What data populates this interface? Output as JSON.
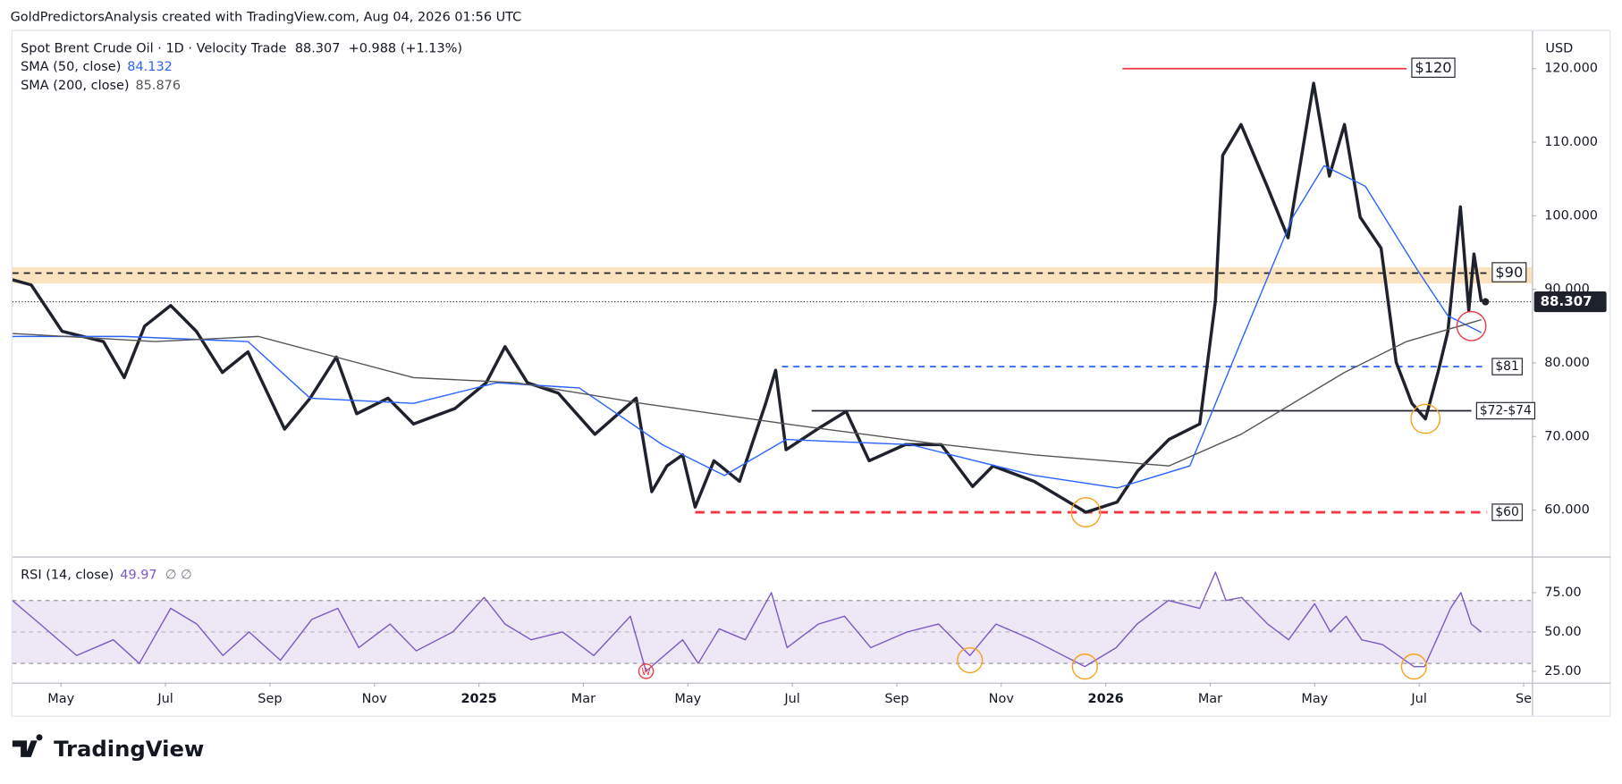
{
  "header": "GoldPredictorsAnalysis created with TradingView.com, Aug 04, 2026 01:56 UTC",
  "logo": "TradingView",
  "chart_data": [
    {
      "type": "line",
      "title": "Spot Brent Crude Oil · 1D · Velocity Trade",
      "change": "+0.988 (+1.13%)",
      "currency": "USD",
      "xlim": [
        3.07,
        32.16
      ],
      "xticks": [
        {
          "value": 4,
          "label": "May"
        },
        {
          "value": 6,
          "label": "Jul"
        },
        {
          "value": 8,
          "label": "Sep"
        },
        {
          "value": 10,
          "label": "Nov"
        },
        {
          "value": 12,
          "label": "2025"
        },
        {
          "value": 14,
          "label": "Mar"
        },
        {
          "value": 16,
          "label": "May"
        },
        {
          "value": 18,
          "label": "Jul"
        },
        {
          "value": 20,
          "label": "Sep"
        },
        {
          "value": 22,
          "label": "Nov"
        },
        {
          "value": 24,
          "label": "2026"
        },
        {
          "value": 26,
          "label": "Mar"
        },
        {
          "value": 28,
          "label": "May"
        },
        {
          "value": 30,
          "label": "Jul"
        },
        {
          "value": 32,
          "label": "Se"
        }
      ],
      "ylim": [
        53.7,
        125.1
      ],
      "yticks": [
        {
          "value": 60,
          "label": "60.000"
        },
        {
          "value": 70,
          "label": "70.000"
        },
        {
          "value": 80,
          "label": "80.000"
        },
        {
          "value": 90,
          "label": "90.000"
        },
        {
          "value": 100,
          "label": "100.000"
        },
        {
          "value": 110,
          "label": "110.000"
        },
        {
          "value": 120,
          "label": "120.000"
        }
      ],
      "band": [
        90.8,
        93
      ],
      "band_color": "#fbe3bf",
      "series": [
        {
          "color": "#1e222d",
          "x": [
            3.07,
            3.43,
            4.02,
            4.81,
            5.21,
            5.6,
            6.1,
            6.59,
            7.09,
            7.58,
            8.28,
            8.77,
            9.27,
            9.66,
            10.26,
            10.75,
            11.54,
            12.14,
            12.5,
            12.93,
            13.52,
            14.22,
            15.01,
            15.31,
            15.6,
            15.9,
            16.14,
            16.5,
            16.99,
            17.49,
            17.68,
            17.88,
            18.48,
            19.03,
            19.47,
            20.16,
            20.85,
            21.45,
            21.84,
            22.63,
            23.62,
            24.22,
            24.61,
            25.21,
            25.8,
            26.1,
            26.24,
            26.59,
            27.09,
            27.49,
            27.98,
            28.28,
            28.57,
            28.87,
            29.27,
            29.56,
            29.86,
            30.12,
            30.36,
            30.55,
            30.79,
            30.95,
            31.05,
            31.19
          ],
          "values": [
            91.3,
            90.6,
            84.3,
            82.9,
            78,
            85,
            87.8,
            84.3,
            78.7,
            81.5,
            71,
            75.2,
            80.8,
            73.1,
            75.2,
            71.7,
            73.8,
            77.3,
            82.2,
            77.3,
            75.9,
            70.3,
            75.2,
            62.5,
            66,
            67.5,
            60.4,
            66.7,
            63.9,
            74.5,
            79,
            68.2,
            71,
            73.4,
            66.7,
            68.9,
            68.9,
            63.2,
            66,
            63.9,
            59.7,
            61.1,
            65.3,
            69.6,
            71.7,
            88.5,
            108.2,
            112.4,
            104,
            97,
            118,
            105.4,
            112.4,
            99.8,
            95.6,
            80.1,
            74.5,
            72.4,
            78.7,
            84.3,
            101.2,
            87.1,
            94.8,
            88.307
          ]
        },
        {
          "name": "SMA (50, close)",
          "color": "#2962ff",
          "x": [
            3.07,
            5.21,
            7.58,
            8.77,
            10.75,
            12.34,
            13.92,
            15.51,
            16.7,
            17.88,
            20.26,
            22.63,
            24.22,
            25.61,
            26.59,
            27.58,
            28.18,
            28.97,
            29.96,
            30.55,
            31.19
          ],
          "values": [
            83.6,
            83.6,
            82.9,
            75.2,
            74.5,
            77.3,
            76.6,
            68.9,
            64.7,
            69.6,
            68.9,
            64.7,
            63,
            66,
            82.9,
            99.8,
            106.8,
            104,
            92.7,
            86.4,
            84.132
          ]
        },
        {
          "name": "SMA (200, close)",
          "color": "#555555",
          "x": [
            3.07,
            5.8,
            7.78,
            10.75,
            12.73,
            15.11,
            17.88,
            20.65,
            22.63,
            25.21,
            26.59,
            28.57,
            29.76,
            31.19
          ],
          "values": [
            84,
            82.9,
            83.6,
            78,
            77.3,
            74.5,
            71.7,
            69.1,
            67.5,
            66,
            70.3,
            78.7,
            82.9,
            85.876
          ]
        }
      ],
      "levels": [
        {
          "label": "$120",
          "value": 120,
          "x": [
            24.32,
            29.76
          ],
          "color": "#f23645",
          "style": "solid"
        },
        {
          "label": "$90",
          "value": 92.2,
          "x": [
            3.07,
            31.3
          ],
          "color": "#1e222d",
          "style": "dashed"
        },
        {
          "label": "$81",
          "value": 79.5,
          "x": [
            17.8,
            31.3
          ],
          "color": "#2962ff",
          "style": "dashed"
        },
        {
          "label": "$72-$74",
          "value": 73.5,
          "x": [
            18.37,
            31.0
          ],
          "color": "#1e222d",
          "style": "solid"
        },
        {
          "label": "$60",
          "value": 59.7,
          "x": [
            16.14,
            31.3
          ],
          "color": "#f23645",
          "style": "dashed"
        }
      ],
      "markers": [
        {
          "x": 23.62,
          "value": 59.7,
          "color": "#f7a21b"
        },
        {
          "x": 30.12,
          "value": 72.4,
          "color": "#f7a21b"
        },
        {
          "x": 31.0,
          "value": 85,
          "color": "#f23645"
        }
      ]
    },
    {
      "type": "line",
      "title": "RSI (14, close)",
      "symbols": "∅  ∅",
      "ylim": [
        17.8,
        96.7
      ],
      "yticks": [
        {
          "value": 25,
          "label": "25.00"
        },
        {
          "value": 50,
          "label": "50.00"
        },
        {
          "value": 75,
          "label": "75.00"
        }
      ],
      "band": [
        30,
        70
      ],
      "band_color": "#ede7f6",
      "series": [
        {
          "color": "#7e57c2",
          "x": [
            3.07,
            3.6,
            4.3,
            5.0,
            5.5,
            6.1,
            6.6,
            7.1,
            7.6,
            8.2,
            8.8,
            9.3,
            9.7,
            10.3,
            10.8,
            11.5,
            12.1,
            12.5,
            13.0,
            13.6,
            14.2,
            14.9,
            15.2,
            15.9,
            16.2,
            16.6,
            17.1,
            17.6,
            17.9,
            18.5,
            19.0,
            19.5,
            20.2,
            20.8,
            21.4,
            21.9,
            22.6,
            23.6,
            24.2,
            24.6,
            25.2,
            25.8,
            26.1,
            26.3,
            26.6,
            27.1,
            27.5,
            28.0,
            28.3,
            28.6,
            28.9,
            29.3,
            29.6,
            29.9,
            30.1,
            30.4,
            30.6,
            30.8,
            31.0,
            31.19
          ],
          "values": [
            70,
            55,
            35,
            45,
            30,
            65,
            55,
            35,
            50,
            32,
            58,
            65,
            40,
            55,
            38,
            50,
            72,
            55,
            45,
            50,
            35,
            60,
            25,
            45,
            30,
            52,
            45,
            75,
            40,
            55,
            60,
            40,
            50,
            55,
            35,
            55,
            45,
            28,
            40,
            55,
            70,
            65,
            88,
            70,
            72,
            55,
            45,
            68,
            50,
            60,
            45,
            42,
            35,
            28,
            28,
            50,
            65,
            75,
            55,
            49.97
          ]
        }
      ],
      "markers": [
        {
          "x": 15.2,
          "value": 25,
          "color": "#f23645",
          "label": "W"
        },
        {
          "x": 21.4,
          "value": 32,
          "color": "#f7a21b"
        },
        {
          "x": 23.6,
          "value": 28,
          "color": "#f7a21b"
        },
        {
          "x": 29.9,
          "value": 28,
          "color": "#f7a21b"
        }
      ]
    }
  ]
}
